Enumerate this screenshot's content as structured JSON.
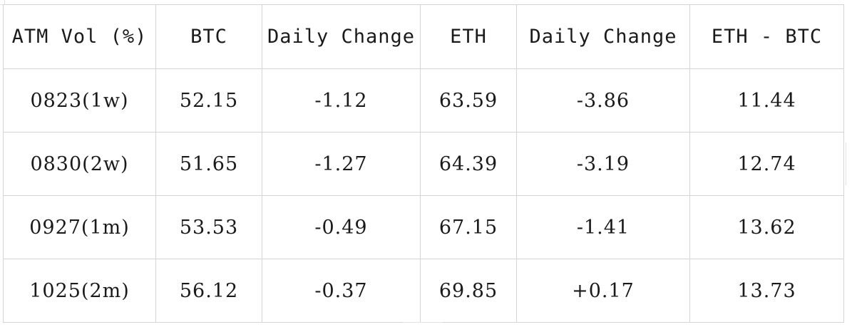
{
  "table": {
    "headers": [
      "ATM Vol (%)",
      "BTC",
      "Daily Change",
      "ETH",
      "Daily Change",
      "ETH - BTC"
    ],
    "rows": [
      [
        "0823(1w)",
        "52.15",
        "-1.12",
        "63.59",
        "-3.86",
        "11.44"
      ],
      [
        "0830(2w)",
        "51.65",
        "-1.27",
        "64.39",
        "-3.19",
        "12.74"
      ],
      [
        "0927(1m)",
        "53.53",
        "-0.49",
        "67.15",
        "-1.41",
        "13.62"
      ],
      [
        "1025(2m)",
        "56.12",
        "-0.37",
        "69.85",
        "+0.17",
        "13.73"
      ]
    ]
  },
  "colors": {
    "grid_line": "#d4d4d4",
    "text": "#1a1a1a",
    "background": "#ffffff"
  }
}
